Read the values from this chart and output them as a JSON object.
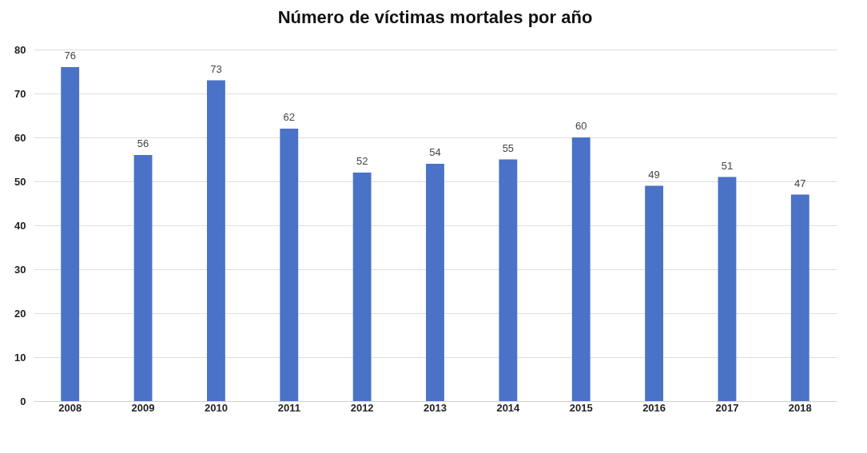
{
  "chart_data": {
    "type": "bar",
    "title": "Número de víctimas mortales por año",
    "categories": [
      "2008",
      "2009",
      "2010",
      "2011",
      "2012",
      "2013",
      "2014",
      "2015",
      "2016",
      "2017",
      "2018"
    ],
    "values": [
      76,
      56,
      73,
      62,
      52,
      54,
      55,
      60,
      49,
      51,
      47
    ],
    "color": "#4a72c6",
    "ylim": [
      0,
      80
    ],
    "yticks": [
      0,
      10,
      20,
      30,
      40,
      50,
      60,
      70,
      80
    ],
    "grid": "y",
    "data_labels": true
  }
}
